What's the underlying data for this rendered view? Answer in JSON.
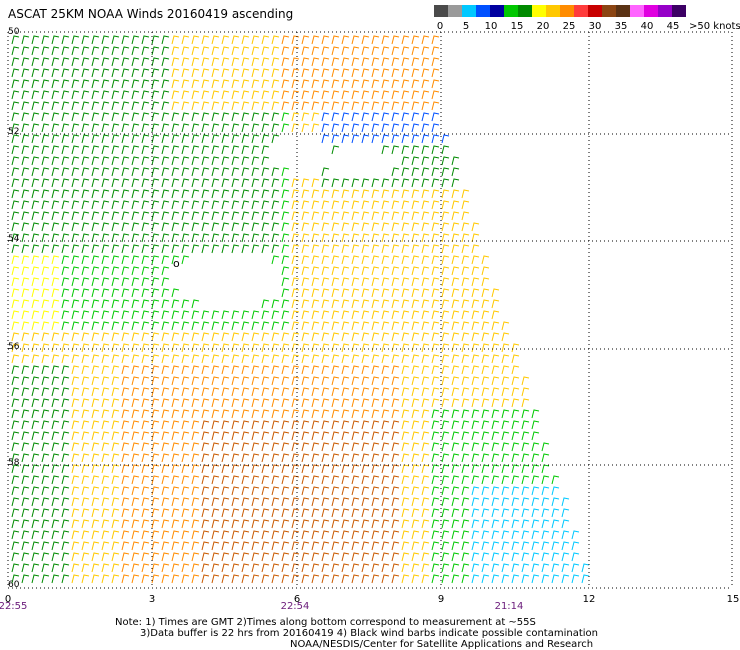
{
  "title": "ASCAT 25KM NOAA Winds 20160419 ascending",
  "legend": {
    "colors": [
      "#4a4a4a",
      "#9a9a9a",
      "#00c8ff",
      "#0050ff",
      "#0000a0",
      "#00c800",
      "#008a00",
      "#ffff00",
      "#ffc800",
      "#ff8c00",
      "#ff3c3c",
      "#c80000",
      "#8b4513",
      "#5a3214",
      "#ff64ff",
      "#e000e0",
      "#9600c8",
      "#3c0064"
    ],
    "labels": [
      "0",
      "5",
      "10",
      "15",
      "20",
      "25",
      "30",
      "35",
      "40",
      "45",
      ">50 knots"
    ]
  },
  "axes": {
    "x_ticks": [
      "0",
      "3",
      "6",
      "9",
      "12",
      "15"
    ],
    "y_ticks": [
      "50",
      "52",
      "54",
      "56",
      "58",
      "60"
    ],
    "times": [
      "22:55",
      "22:54",
      "21:14"
    ]
  },
  "notes": {
    "line1": "Note: 1) Times are GMT 2)Times along bottom correspond to measurement at ~55S",
    "line2": "3)Data buffer is 22 hrs from 20160419 4) Black wind barbs indicate possible contamination",
    "line3": "NOAA/NESDIS/Center for Satellite Applications and Research"
  },
  "map_marker": "o"
}
